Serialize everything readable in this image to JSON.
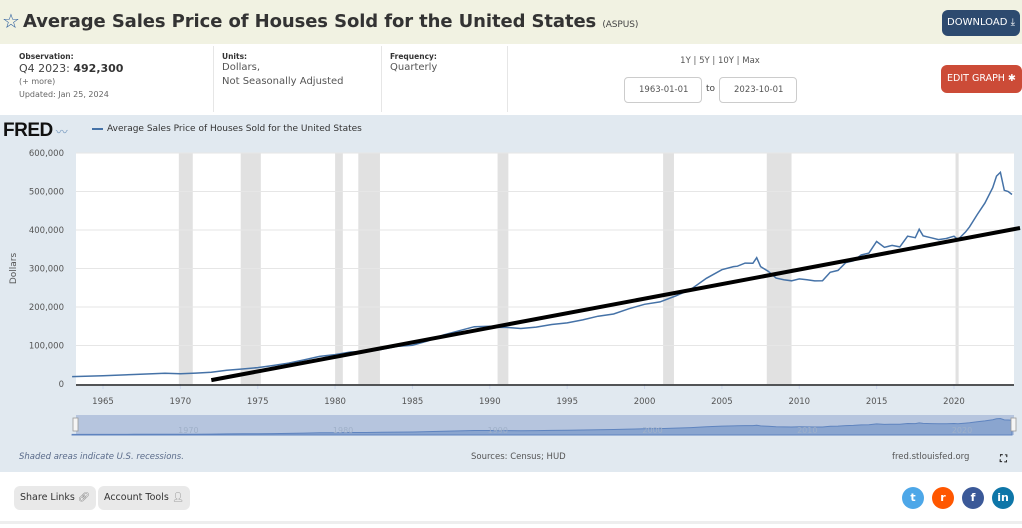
{
  "header": {
    "title": "Average Sales Price of Houses Sold for the United States",
    "series_id": "(ASPUS)",
    "download_label": "DOWNLOAD",
    "star_icon": "star-outline-icon",
    "download_icon": "download-icon"
  },
  "meta": {
    "observation_label": "Observation:",
    "observation_period": "Q4 2023:",
    "observation_value": "492,300",
    "more_label": "(+ more)",
    "updated": "Updated: Jan 25, 2024",
    "units_label": "Units:",
    "units_line1": "Dollars,",
    "units_line2": "Not Seasonally Adjusted",
    "frequency_label": "Frequency:",
    "frequency_value": "Quarterly"
  },
  "range": {
    "links": [
      "1Y",
      "5Y",
      "10Y",
      "Max"
    ],
    "start_date": "1963-01-01",
    "to_label": "to",
    "end_date": "2023-10-01",
    "edit_label": "EDIT GRAPH",
    "edit_icon": "gear-icon"
  },
  "graph": {
    "logo": "FRED",
    "footnote_left": "Shaded areas indicate U.S. recessions.",
    "sources": "Sources: Census; HUD",
    "site": "fred.stlouisfed.org",
    "fullscreen_icon": "fullscreen-icon"
  },
  "bottom": {
    "share_label": "Share Links",
    "share_icon": "link-icon",
    "account_label": "Account Tools",
    "account_icon": "user-icon",
    "social": [
      {
        "name": "twitter",
        "color": "#4da7e8",
        "glyph": "t"
      },
      {
        "name": "reddit",
        "color": "#ff5700",
        "glyph": "r"
      },
      {
        "name": "facebook",
        "color": "#3b5998",
        "glyph": "f"
      },
      {
        "name": "linkedin",
        "color": "#0e76a8",
        "glyph": "in"
      }
    ]
  },
  "chart_data": {
    "type": "line",
    "title": "Average Sales Price of Houses Sold for the United States",
    "ylabel": "Dollars",
    "xlabel": "",
    "ylim": [
      0,
      600000
    ],
    "xlim": [
      1963.0,
      2023.75
    ],
    "yticks": [
      0,
      100000,
      200000,
      300000,
      400000,
      500000,
      600000
    ],
    "ytick_labels": [
      "0",
      "100,000",
      "200,000",
      "300,000",
      "400,000",
      "500,000",
      "600,000"
    ],
    "xticks": [
      1965,
      1970,
      1975,
      1980,
      1985,
      1990,
      1995,
      2000,
      2005,
      2010,
      2015,
      2020
    ],
    "navigator_labels": [
      "1970",
      "1980",
      "1990",
      "2000",
      "2010",
      "2020"
    ],
    "grid": true,
    "legend": "top-left",
    "series_color": "#4572a7",
    "recessions": [
      [
        1969.9,
        1970.8
      ],
      [
        1973.9,
        1975.2
      ],
      [
        1980.0,
        1980.5
      ],
      [
        1981.5,
        1982.9
      ],
      [
        1990.5,
        1991.2
      ],
      [
        2001.2,
        2001.9
      ],
      [
        2007.9,
        2009.5
      ],
      [
        2020.1,
        2020.3
      ]
    ],
    "series": [
      {
        "name": "Average Sales Price of Houses Sold for the United States",
        "x": [
          1963.0,
          1965.0,
          1967.0,
          1969.0,
          1970.0,
          1971.0,
          1972.0,
          1973.0,
          1974.0,
          1975.0,
          1976.0,
          1977.0,
          1978.0,
          1979.0,
          1980.0,
          1981.0,
          1982.0,
          1983.0,
          1984.0,
          1985.0,
          1986.0,
          1987.0,
          1988.0,
          1989.0,
          1990.0,
          1990.5,
          1991.0,
          1992.0,
          1993.0,
          1994.0,
          1995.0,
          1996.0,
          1997.0,
          1998.0,
          1999.0,
          2000.0,
          2001.0,
          2002.0,
          2003.0,
          2004.0,
          2005.0,
          2005.75,
          2006.0,
          2006.5,
          2007.0,
          2007.25,
          2007.5,
          2008.0,
          2008.5,
          2009.0,
          2009.5,
          2010.0,
          2010.5,
          2011.0,
          2011.5,
          2012.0,
          2012.5,
          2013.0,
          2013.5,
          2014.0,
          2014.5,
          2015.0,
          2015.5,
          2016.0,
          2016.5,
          2017.0,
          2017.5,
          2017.75,
          2018.0,
          2018.5,
          2019.0,
          2019.5,
          2020.0,
          2020.25,
          2020.75,
          2021.0,
          2021.5,
          2022.0,
          2022.5,
          2022.75,
          2023.0,
          2023.25,
          2023.5,
          2023.75
        ],
        "values": [
          19300,
          21500,
          24700,
          27900,
          26600,
          28300,
          30500,
          35500,
          38900,
          42600,
          48000,
          54200,
          62500,
          71800,
          76400,
          83000,
          83900,
          89800,
          97600,
          100800,
          111900,
          127200,
          138300,
          148800,
          149800,
          147000,
          147200,
          144100,
          147700,
          154500,
          158700,
          166400,
          176200,
          181900,
          195600,
          207000,
          213200,
          228700,
          246300,
          274500,
          297000,
          305000,
          305900,
          314000,
          313600,
          328000,
          305000,
          292600,
          275000,
          270900,
          268000,
          272900,
          271000,
          267900,
          268000,
          290000,
          295000,
          315000,
          320000,
          335000,
          340000,
          370000,
          355000,
          360000,
          356000,
          384000,
          380000,
          402000,
          385000,
          380000,
          375000,
          378000,
          384000,
          375000,
          395000,
          408000,
          440000,
          470000,
          510000,
          540000,
          550000,
          503000,
          500000,
          492300
        ]
      }
    ],
    "annotation": {
      "type": "trend-line",
      "color": "#000000",
      "from": [
        1972.0,
        10000
      ],
      "to": [
        2023.75,
        400000
      ]
    }
  }
}
